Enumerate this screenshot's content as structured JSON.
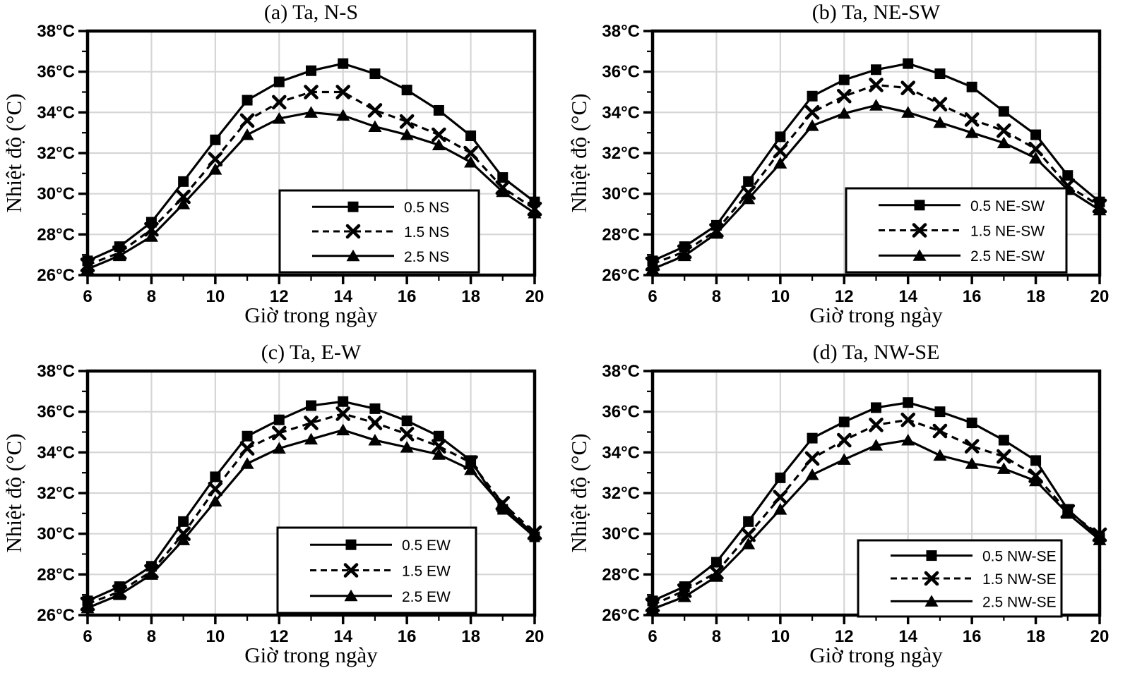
{
  "figure": {
    "background": "#ffffff",
    "axis_color": "#000000",
    "grid_color": "#d6d6d6",
    "legend_border_color": "#000000"
  },
  "chart_data": [
    {
      "panel": "a",
      "type": "line",
      "title": "(a) Ta, N-S",
      "xlabel": "Giờ trong ngày",
      "ylabel": "Nhiệt độ (°C)",
      "xlim": [
        6,
        20
      ],
      "ylim": [
        26,
        38
      ],
      "grid": true,
      "legend_position": "inside-bottom-right",
      "x": [
        6,
        7,
        8,
        9,
        10,
        11,
        12,
        13,
        14,
        15,
        16,
        17,
        18,
        19,
        20
      ],
      "xticklabels": [
        "6",
        "8",
        "10",
        "12",
        "14",
        "16",
        "18",
        "20"
      ],
      "yticklabels": [
        "26°C",
        "28°C",
        "30°C",
        "32°C",
        "34°C",
        "36°C",
        "38°C"
      ],
      "series": [
        {
          "name": "0.5 NS",
          "marker": "square",
          "line_style": "solid",
          "values": [
            26.7,
            27.4,
            28.6,
            30.6,
            32.65,
            34.6,
            35.5,
            36.05,
            36.4,
            35.9,
            35.1,
            34.1,
            32.85,
            30.8,
            29.6
          ]
        },
        {
          "name": "1.5 NS",
          "marker": "x",
          "line_style": "dashed",
          "values": [
            26.5,
            27.1,
            28.25,
            29.85,
            31.7,
            33.6,
            34.5,
            35.0,
            35.0,
            34.1,
            33.55,
            32.9,
            32.0,
            30.3,
            29.25
          ]
        },
        {
          "name": "2.5 NS",
          "marker": "triangle",
          "line_style": "solid",
          "values": [
            26.3,
            26.95,
            27.9,
            29.5,
            31.2,
            32.9,
            33.7,
            34.0,
            33.85,
            33.3,
            32.9,
            32.4,
            31.55,
            30.1,
            29.05
          ]
        }
      ]
    },
    {
      "panel": "b",
      "type": "line",
      "title": "(b) Ta, NE-SW",
      "xlabel": "Giờ trong ngày",
      "ylabel": "Nhiệt độ (°C)",
      "xlim": [
        6,
        20
      ],
      "ylim": [
        26,
        38
      ],
      "grid": true,
      "legend_position": "inside-bottom-right",
      "x": [
        6,
        7,
        8,
        9,
        10,
        11,
        12,
        13,
        14,
        15,
        16,
        17,
        18,
        19,
        20
      ],
      "xticklabels": [
        "6",
        "8",
        "10",
        "12",
        "14",
        "16",
        "18",
        "20"
      ],
      "yticklabels": [
        "26°C",
        "28°C",
        "30°C",
        "32°C",
        "34°C",
        "36°C",
        "38°C"
      ],
      "series": [
        {
          "name": "0.5 NE-SW",
          "marker": "square",
          "line_style": "solid",
          "values": [
            26.7,
            27.4,
            28.45,
            30.6,
            32.8,
            34.8,
            35.6,
            36.1,
            36.4,
            35.9,
            35.25,
            34.05,
            32.9,
            30.9,
            29.6
          ]
        },
        {
          "name": "1.5 NE-SW",
          "marker": "x",
          "line_style": "dashed",
          "values": [
            26.55,
            27.15,
            28.2,
            30.05,
            32.1,
            34.0,
            34.8,
            35.35,
            35.2,
            34.4,
            33.65,
            33.1,
            32.2,
            30.4,
            29.4
          ]
        },
        {
          "name": "2.5 NE-SW",
          "marker": "triangle",
          "line_style": "solid",
          "values": [
            26.3,
            26.95,
            28.05,
            29.75,
            31.5,
            33.35,
            33.95,
            34.35,
            34.0,
            33.5,
            33.0,
            32.5,
            31.75,
            30.2,
            29.2
          ]
        }
      ]
    },
    {
      "panel": "c",
      "type": "line",
      "title": "(c) Ta, E-W",
      "xlabel": "Giờ trong ngày",
      "ylabel": "Nhiệt độ (°C)",
      "xlim": [
        6,
        20
      ],
      "ylim": [
        26,
        38
      ],
      "grid": true,
      "legend_position": "inside-bottom-right",
      "x": [
        6,
        7,
        8,
        9,
        10,
        11,
        12,
        13,
        14,
        15,
        16,
        17,
        18,
        19,
        20
      ],
      "xticklabels": [
        "6",
        "8",
        "10",
        "12",
        "14",
        "16",
        "18",
        "20"
      ],
      "yticklabels": [
        "26°C",
        "28°C",
        "30°C",
        "32°C",
        "34°C",
        "36°C",
        "38°C"
      ],
      "series": [
        {
          "name": "0.5 EW",
          "marker": "square",
          "line_style": "solid",
          "values": [
            26.7,
            27.4,
            28.4,
            30.6,
            32.8,
            34.8,
            35.6,
            36.3,
            36.5,
            36.15,
            35.55,
            34.8,
            33.6,
            31.2,
            29.85
          ]
        },
        {
          "name": "1.5 EW",
          "marker": "x",
          "line_style": "dashed",
          "values": [
            26.55,
            27.15,
            28.15,
            30.0,
            32.2,
            34.2,
            34.95,
            35.45,
            35.9,
            35.45,
            34.9,
            34.3,
            33.5,
            31.5,
            30.05
          ]
        },
        {
          "name": "2.5 EW",
          "marker": "triangle",
          "line_style": "solid",
          "values": [
            26.35,
            27.0,
            28.0,
            29.7,
            31.6,
            33.45,
            34.2,
            34.65,
            35.1,
            34.6,
            34.25,
            33.9,
            33.15,
            31.35,
            29.95
          ]
        }
      ]
    },
    {
      "panel": "d",
      "type": "line",
      "title": "(d) Ta, NW-SE",
      "xlabel": "Giờ trong ngày",
      "ylabel": "Nhiệt độ (°C)",
      "xlim": [
        6,
        20
      ],
      "ylim": [
        26,
        38
      ],
      "grid": true,
      "legend_position": "inside-bottom-right",
      "x": [
        6,
        7,
        8,
        9,
        10,
        11,
        12,
        13,
        14,
        15,
        16,
        17,
        18,
        19,
        20
      ],
      "xticklabels": [
        "6",
        "8",
        "10",
        "12",
        "14",
        "16",
        "18",
        "20"
      ],
      "yticklabels": [
        "26°C",
        "28°C",
        "30°C",
        "32°C",
        "34°C",
        "36°C",
        "38°C"
      ],
      "series": [
        {
          "name": "0.5 NW-SE",
          "marker": "square",
          "line_style": "solid",
          "values": [
            26.7,
            27.4,
            28.6,
            30.6,
            32.75,
            34.7,
            35.5,
            36.2,
            36.45,
            36.0,
            35.45,
            34.6,
            33.6,
            31.2,
            29.8
          ]
        },
        {
          "name": "1.5 NW-SE",
          "marker": "x",
          "line_style": "dashed",
          "values": [
            26.5,
            27.2,
            28.1,
            29.95,
            31.8,
            33.7,
            34.6,
            35.35,
            35.6,
            35.05,
            34.3,
            33.8,
            32.85,
            31.1,
            29.95
          ]
        },
        {
          "name": "2.5 NW-SE",
          "marker": "triangle",
          "line_style": "solid",
          "values": [
            26.3,
            26.9,
            27.9,
            29.5,
            31.2,
            32.9,
            33.65,
            34.35,
            34.6,
            33.85,
            33.45,
            33.2,
            32.6,
            31.0,
            29.7
          ]
        }
      ]
    }
  ]
}
